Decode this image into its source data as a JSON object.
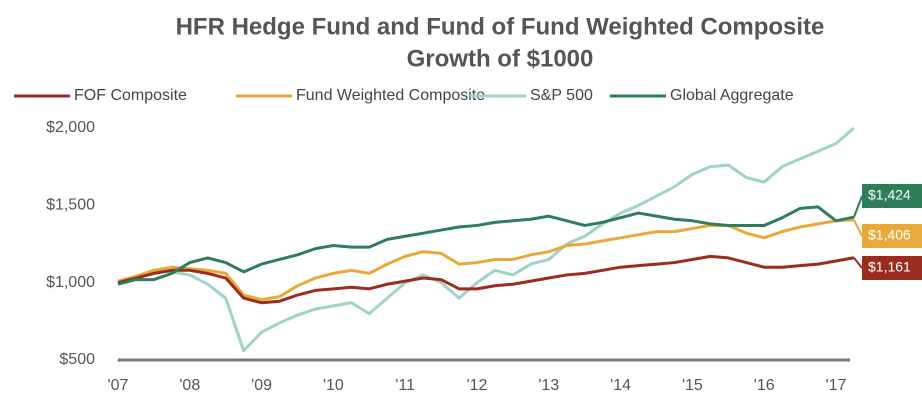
{
  "chart_data": {
    "type": "line",
    "title": "HFR Hedge Fund and Fund of Fund Weighted Composite",
    "subtitle": "Growth of $1000",
    "x": [
      2007,
      2007.25,
      2007.5,
      2007.75,
      2008,
      2008.25,
      2008.5,
      2008.75,
      2009,
      2009.25,
      2009.5,
      2009.75,
      2010,
      2010.25,
      2010.5,
      2010.75,
      2011,
      2011.25,
      2011.5,
      2011.75,
      2012,
      2012.25,
      2012.5,
      2012.75,
      2013,
      2013.25,
      2013.5,
      2013.75,
      2014,
      2014.25,
      2014.5,
      2014.75,
      2015,
      2015.25,
      2015.5,
      2015.75,
      2016,
      2016.25,
      2016.5,
      2016.75,
      2017,
      2017.25
    ],
    "series": [
      {
        "name": "FOF Composite",
        "color": "#9b2d1f",
        "end_label": "$1,161",
        "values": [
          1000,
          1030,
          1060,
          1080,
          1080,
          1060,
          1030,
          900,
          870,
          880,
          920,
          950,
          960,
          970,
          960,
          990,
          1010,
          1030,
          1020,
          960,
          960,
          980,
          990,
          1010,
          1030,
          1050,
          1060,
          1080,
          1100,
          1110,
          1120,
          1130,
          1150,
          1170,
          1160,
          1130,
          1100,
          1100,
          1110,
          1120,
          1140,
          1161
        ]
      },
      {
        "name": "Fund Weighted Composite",
        "color": "#e8a93a",
        "end_label": "$1,406",
        "values": [
          1010,
          1040,
          1080,
          1100,
          1090,
          1080,
          1060,
          920,
          890,
          910,
          980,
          1030,
          1060,
          1080,
          1060,
          1120,
          1170,
          1200,
          1190,
          1120,
          1130,
          1150,
          1150,
          1180,
          1200,
          1240,
          1250,
          1270,
          1290,
          1310,
          1330,
          1330,
          1350,
          1370,
          1370,
          1320,
          1290,
          1330,
          1360,
          1380,
          1400,
          1406
        ]
      },
      {
        "name": "S&P 500",
        "color": "#9fd3c7",
        "values": [
          1000,
          1040,
          1080,
          1070,
          1050,
          990,
          900,
          560,
          680,
          740,
          790,
          830,
          850,
          870,
          800,
          900,
          1000,
          1050,
          1000,
          900,
          1000,
          1080,
          1050,
          1120,
          1150,
          1250,
          1300,
          1380,
          1450,
          1500,
          1560,
          1620,
          1700,
          1750,
          1760,
          1680,
          1650,
          1750,
          1800,
          1850,
          1900,
          2000
        ]
      },
      {
        "name": "Global Aggregate",
        "color": "#2e7d5b",
        "end_label": "$1,424",
        "values": [
          990,
          1020,
          1020,
          1060,
          1130,
          1160,
          1130,
          1070,
          1120,
          1150,
          1180,
          1220,
          1240,
          1230,
          1230,
          1280,
          1300,
          1320,
          1340,
          1360,
          1370,
          1390,
          1400,
          1410,
          1430,
          1400,
          1370,
          1390,
          1420,
          1450,
          1430,
          1410,
          1400,
          1380,
          1370,
          1370,
          1370,
          1420,
          1480,
          1490,
          1400,
          1424
        ]
      }
    ],
    "xlim": [
      2007,
      2017
    ],
    "xticks": [
      {
        "value": 2007,
        "label": "'07"
      },
      {
        "value": 2008,
        "label": "'08"
      },
      {
        "value": 2009,
        "label": "'09"
      },
      {
        "value": 2010,
        "label": "'10"
      },
      {
        "value": 2011,
        "label": "'11"
      },
      {
        "value": 2012,
        "label": "'12"
      },
      {
        "value": 2013,
        "label": "'13"
      },
      {
        "value": 2014,
        "label": "'14"
      },
      {
        "value": 2015,
        "label": "'15"
      },
      {
        "value": 2016,
        "label": "'16"
      },
      {
        "value": 2017,
        "label": "'17"
      }
    ],
    "ylim": [
      500,
      2000
    ],
    "yticks": [
      {
        "value": 500,
        "label": "$500"
      },
      {
        "value": 1000,
        "label": "$1,000"
      },
      {
        "value": 1500,
        "label": "$1,500"
      },
      {
        "value": 2000,
        "label": "$2,000"
      }
    ],
    "grid": false,
    "legend": "top"
  }
}
